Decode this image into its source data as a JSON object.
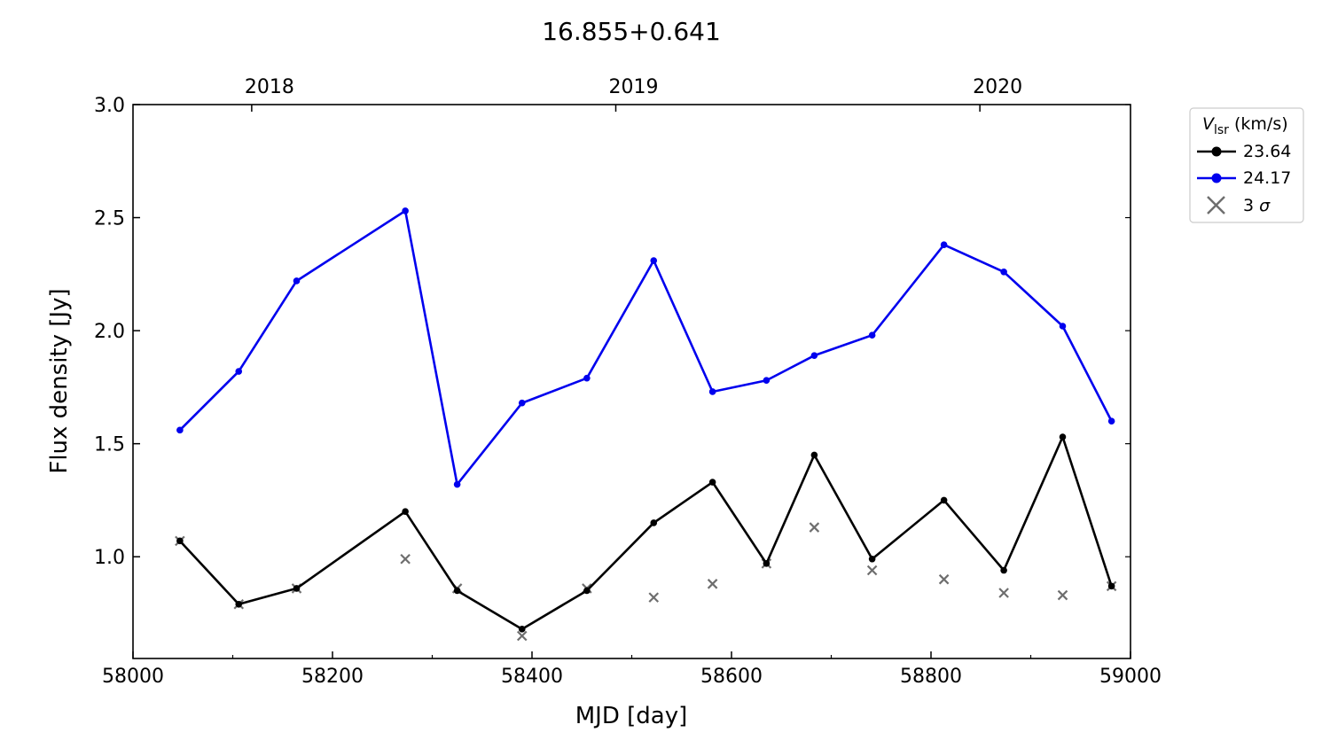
{
  "chart_data": {
    "type": "line",
    "title": "16.855+0.641",
    "xlabel": "MJD [day]",
    "ylabel": "Flux density [Jy]",
    "xlim": [
      58000,
      59000
    ],
    "ylim": [
      0.55,
      3.0
    ],
    "xticks": [
      58000,
      58200,
      58400,
      58600,
      58800,
      59000
    ],
    "xtick_labels": [
      "58000",
      "58200",
      "58400",
      "58600",
      "58800",
      "59000"
    ],
    "yticks": [
      1.0,
      1.5,
      2.0,
      2.5,
      3.0
    ],
    "ytick_labels": [
      "1.0",
      "1.5",
      "2.0",
      "2.5",
      "3.0"
    ],
    "top_axis_ticks": [
      58119,
      58484,
      58849
    ],
    "top_axis_labels": [
      "2018",
      "2019",
      "2020"
    ],
    "grid": false,
    "legend": {
      "title_symbol": "V",
      "title_subscript": "lsr",
      "title_unit": " (km/s)",
      "placement": "outside-top-right"
    },
    "x": [
      58047,
      58106,
      58164,
      58273,
      58325,
      58390,
      58455,
      58522,
      58581,
      58635,
      58683,
      58741,
      58813,
      58873,
      58932,
      58981
    ],
    "series": [
      {
        "name": "23.64",
        "color": "#000000",
        "values": [
          1.07,
          0.79,
          0.86,
          1.2,
          0.85,
          0.68,
          0.85,
          1.15,
          1.33,
          0.97,
          1.45,
          0.99,
          1.25,
          0.94,
          1.53,
          0.87
        ]
      },
      {
        "name": "24.17",
        "color": "#0000ee",
        "values": [
          1.56,
          1.82,
          2.22,
          2.53,
          1.32,
          1.68,
          1.79,
          2.31,
          1.73,
          1.78,
          1.89,
          1.98,
          2.38,
          2.26,
          2.02,
          1.6
        ]
      }
    ],
    "sigma": {
      "name": "3 σ",
      "name_base": "3 ",
      "name_symbol": "σ",
      "color": "#6e6e6e",
      "values": [
        1.07,
        0.79,
        0.86,
        0.99,
        0.86,
        0.65,
        0.86,
        0.82,
        0.88,
        0.97,
        1.13,
        0.94,
        0.9,
        0.84,
        0.83,
        0.87
      ]
    }
  }
}
